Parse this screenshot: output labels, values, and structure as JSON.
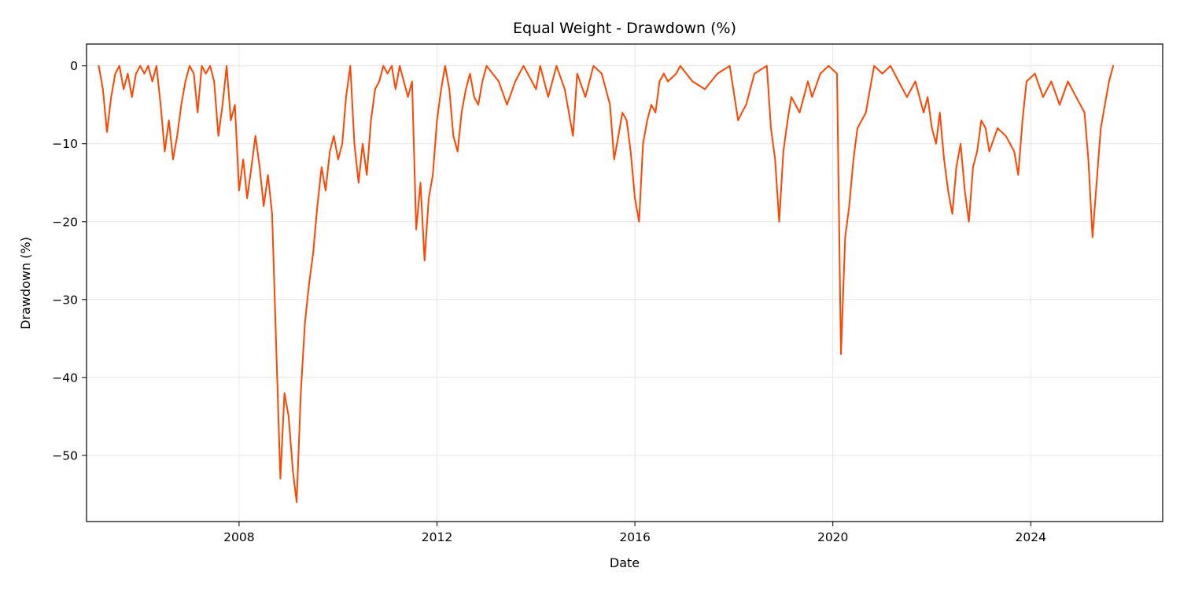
{
  "chart_data": {
    "type": "line",
    "title": "Equal Weight - Drawdown (%)",
    "xlabel": "Date",
    "ylabel": "Drawdown (%)",
    "x_range": [
      "2004-12-01",
      "2026-09-01"
    ],
    "ylim": [
      -58.5,
      2.8
    ],
    "x_ticks": [
      {
        "date": "2008-01-01",
        "label": "2008"
      },
      {
        "date": "2012-01-01",
        "label": "2012"
      },
      {
        "date": "2016-01-01",
        "label": "2016"
      },
      {
        "date": "2020-01-01",
        "label": "2020"
      },
      {
        "date": "2024-01-01",
        "label": "2024"
      }
    ],
    "y_ticks": [
      {
        "value": 0,
        "label": "0"
      },
      {
        "value": -10,
        "label": "−10"
      },
      {
        "value": -20,
        "label": "−20"
      },
      {
        "value": -30,
        "label": "−30"
      },
      {
        "value": -40,
        "label": "−40"
      },
      {
        "value": -50,
        "label": "−50"
      }
    ],
    "grid": true,
    "colors": {
      "line": "#ff4500",
      "grid": "#e6e6e6",
      "axis": "#000000"
    },
    "series": [
      {
        "name": "",
        "points": [
          [
            "2005-03-01",
            0
          ],
          [
            "2005-04-01",
            -3
          ],
          [
            "2005-05-01",
            -8.5
          ],
          [
            "2005-06-01",
            -4
          ],
          [
            "2005-07-01",
            -1
          ],
          [
            "2005-08-01",
            0
          ],
          [
            "2005-09-01",
            -3
          ],
          [
            "2005-10-01",
            -1
          ],
          [
            "2005-11-01",
            -4
          ],
          [
            "2005-12-01",
            -1
          ],
          [
            "2006-01-01",
            0
          ],
          [
            "2006-02-01",
            -1
          ],
          [
            "2006-03-01",
            0
          ],
          [
            "2006-04-01",
            -2
          ],
          [
            "2006-05-01",
            0
          ],
          [
            "2006-06-01",
            -5
          ],
          [
            "2006-07-01",
            -11
          ],
          [
            "2006-08-01",
            -7
          ],
          [
            "2006-09-01",
            -12
          ],
          [
            "2006-10-01",
            -9
          ],
          [
            "2006-11-01",
            -5
          ],
          [
            "2006-12-01",
            -2
          ],
          [
            "2007-01-01",
            0
          ],
          [
            "2007-02-01",
            -1
          ],
          [
            "2007-03-01",
            -6
          ],
          [
            "2007-04-01",
            0
          ],
          [
            "2007-05-01",
            -1
          ],
          [
            "2007-06-01",
            0
          ],
          [
            "2007-07-01",
            -2
          ],
          [
            "2007-08-01",
            -9
          ],
          [
            "2007-09-01",
            -5
          ],
          [
            "2007-10-01",
            0
          ],
          [
            "2007-11-01",
            -7
          ],
          [
            "2007-12-01",
            -5
          ],
          [
            "2008-01-01",
            -16
          ],
          [
            "2008-02-01",
            -12
          ],
          [
            "2008-03-01",
            -17
          ],
          [
            "2008-04-01",
            -13
          ],
          [
            "2008-05-01",
            -9
          ],
          [
            "2008-06-01",
            -13
          ],
          [
            "2008-07-01",
            -18
          ],
          [
            "2008-08-01",
            -14
          ],
          [
            "2008-09-01",
            -19
          ],
          [
            "2008-10-01",
            -36
          ],
          [
            "2008-11-01",
            -53
          ],
          [
            "2008-12-01",
            -42
          ],
          [
            "2009-01-01",
            -45
          ],
          [
            "2009-02-01",
            -52
          ],
          [
            "2009-03-01",
            -56
          ],
          [
            "2009-04-01",
            -42
          ],
          [
            "2009-05-01",
            -33
          ],
          [
            "2009-06-01",
            -28
          ],
          [
            "2009-07-01",
            -24
          ],
          [
            "2009-08-01",
            -18
          ],
          [
            "2009-09-01",
            -13
          ],
          [
            "2009-10-01",
            -16
          ],
          [
            "2009-11-01",
            -11
          ],
          [
            "2009-12-01",
            -9
          ],
          [
            "2010-01-01",
            -12
          ],
          [
            "2010-02-01",
            -10
          ],
          [
            "2010-03-01",
            -4
          ],
          [
            "2010-04-01",
            0
          ],
          [
            "2010-05-01",
            -10
          ],
          [
            "2010-06-01",
            -15
          ],
          [
            "2010-07-01",
            -10
          ],
          [
            "2010-08-01",
            -14
          ],
          [
            "2010-09-01",
            -7
          ],
          [
            "2010-10-01",
            -3
          ],
          [
            "2010-11-01",
            -2
          ],
          [
            "2010-12-01",
            0
          ],
          [
            "2011-01-01",
            -1
          ],
          [
            "2011-02-01",
            0
          ],
          [
            "2011-03-01",
            -3
          ],
          [
            "2011-04-01",
            0
          ],
          [
            "2011-05-01",
            -2
          ],
          [
            "2011-06-01",
            -4
          ],
          [
            "2011-07-01",
            -2
          ],
          [
            "2011-08-01",
            -21
          ],
          [
            "2011-09-01",
            -15
          ],
          [
            "2011-10-01",
            -25
          ],
          [
            "2011-11-01",
            -17
          ],
          [
            "2011-12-01",
            -14
          ],
          [
            "2012-01-01",
            -7
          ],
          [
            "2012-02-01",
            -3
          ],
          [
            "2012-03-01",
            0
          ],
          [
            "2012-04-01",
            -3
          ],
          [
            "2012-05-01",
            -9
          ],
          [
            "2012-06-01",
            -11
          ],
          [
            "2012-07-01",
            -6
          ],
          [
            "2012-08-01",
            -3
          ],
          [
            "2012-09-01",
            -1
          ],
          [
            "2012-10-01",
            -4
          ],
          [
            "2012-11-01",
            -5
          ],
          [
            "2012-12-01",
            -2
          ],
          [
            "2013-01-01",
            0
          ],
          [
            "2013-04-01",
            -2
          ],
          [
            "2013-06-01",
            -5
          ],
          [
            "2013-08-01",
            -2
          ],
          [
            "2013-10-01",
            0
          ],
          [
            "2014-01-01",
            -3
          ],
          [
            "2014-02-01",
            0
          ],
          [
            "2014-04-01",
            -4
          ],
          [
            "2014-06-01",
            0
          ],
          [
            "2014-08-01",
            -3
          ],
          [
            "2014-10-01",
            -9
          ],
          [
            "2014-11-01",
            -1
          ],
          [
            "2015-01-01",
            -4
          ],
          [
            "2015-03-01",
            0
          ],
          [
            "2015-05-01",
            -1
          ],
          [
            "2015-07-01",
            -5
          ],
          [
            "2015-08-01",
            -12
          ],
          [
            "2015-09-01",
            -9
          ],
          [
            "2015-10-01",
            -6
          ],
          [
            "2015-11-01",
            -7
          ],
          [
            "2015-12-01",
            -11
          ],
          [
            "2016-01-01",
            -17
          ],
          [
            "2016-02-01",
            -20
          ],
          [
            "2016-03-01",
            -10
          ],
          [
            "2016-04-01",
            -7
          ],
          [
            "2016-05-01",
            -5
          ],
          [
            "2016-06-01",
            -6
          ],
          [
            "2016-07-01",
            -2
          ],
          [
            "2016-08-01",
            -1
          ],
          [
            "2016-09-01",
            -2
          ],
          [
            "2016-11-01",
            -1
          ],
          [
            "2016-12-01",
            0
          ],
          [
            "2017-03-01",
            -2
          ],
          [
            "2017-06-01",
            -3
          ],
          [
            "2017-09-01",
            -1
          ],
          [
            "2017-12-01",
            0
          ],
          [
            "2018-02-01",
            -7
          ],
          [
            "2018-03-01",
            -6
          ],
          [
            "2018-04-01",
            -5
          ],
          [
            "2018-06-01",
            -1
          ],
          [
            "2018-09-01",
            0
          ],
          [
            "2018-10-01",
            -8
          ],
          [
            "2018-11-01",
            -12
          ],
          [
            "2018-12-01",
            -20
          ],
          [
            "2019-01-01",
            -11
          ],
          [
            "2019-02-01",
            -7
          ],
          [
            "2019-03-01",
            -4
          ],
          [
            "2019-05-01",
            -6
          ],
          [
            "2019-07-01",
            -2
          ],
          [
            "2019-08-01",
            -4
          ],
          [
            "2019-10-01",
            -1
          ],
          [
            "2019-12-01",
            0
          ],
          [
            "2020-02-01",
            -1
          ],
          [
            "2020-03-01",
            -37
          ],
          [
            "2020-04-01",
            -22
          ],
          [
            "2020-05-01",
            -18
          ],
          [
            "2020-06-01",
            -12
          ],
          [
            "2020-07-01",
            -8
          ],
          [
            "2020-09-01",
            -6
          ],
          [
            "2020-10-01",
            -3
          ],
          [
            "2020-11-01",
            0
          ],
          [
            "2021-01-01",
            -1
          ],
          [
            "2021-03-01",
            0
          ],
          [
            "2021-05-01",
            -2
          ],
          [
            "2021-07-01",
            -4
          ],
          [
            "2021-09-01",
            -2
          ],
          [
            "2021-11-01",
            -6
          ],
          [
            "2021-12-01",
            -4
          ],
          [
            "2022-01-01",
            -8
          ],
          [
            "2022-02-01",
            -10
          ],
          [
            "2022-03-01",
            -6
          ],
          [
            "2022-04-01",
            -12
          ],
          [
            "2022-05-01",
            -16
          ],
          [
            "2022-06-01",
            -19
          ],
          [
            "2022-07-01",
            -13
          ],
          [
            "2022-08-01",
            -10
          ],
          [
            "2022-09-01",
            -16
          ],
          [
            "2022-10-01",
            -20
          ],
          [
            "2022-11-01",
            -13
          ],
          [
            "2022-12-01",
            -11
          ],
          [
            "2023-01-01",
            -7
          ],
          [
            "2023-02-01",
            -8
          ],
          [
            "2023-03-01",
            -11
          ],
          [
            "2023-05-01",
            -8
          ],
          [
            "2023-07-01",
            -9
          ],
          [
            "2023-09-01",
            -11
          ],
          [
            "2023-10-01",
            -14
          ],
          [
            "2023-11-01",
            -7
          ],
          [
            "2023-12-01",
            -2
          ],
          [
            "2024-02-01",
            -1
          ],
          [
            "2024-04-01",
            -4
          ],
          [
            "2024-06-01",
            -2
          ],
          [
            "2024-08-01",
            -5
          ],
          [
            "2024-10-01",
            -2
          ],
          [
            "2024-12-01",
            -4
          ],
          [
            "2025-01-01",
            -5
          ],
          [
            "2025-02-01",
            -6
          ],
          [
            "2025-03-01",
            -12
          ],
          [
            "2025-04-01",
            -22
          ],
          [
            "2025-05-01",
            -15
          ],
          [
            "2025-06-01",
            -8
          ],
          [
            "2025-07-01",
            -5
          ],
          [
            "2025-08-01",
            -2
          ],
          [
            "2025-09-01",
            0
          ]
        ]
      }
    ]
  }
}
